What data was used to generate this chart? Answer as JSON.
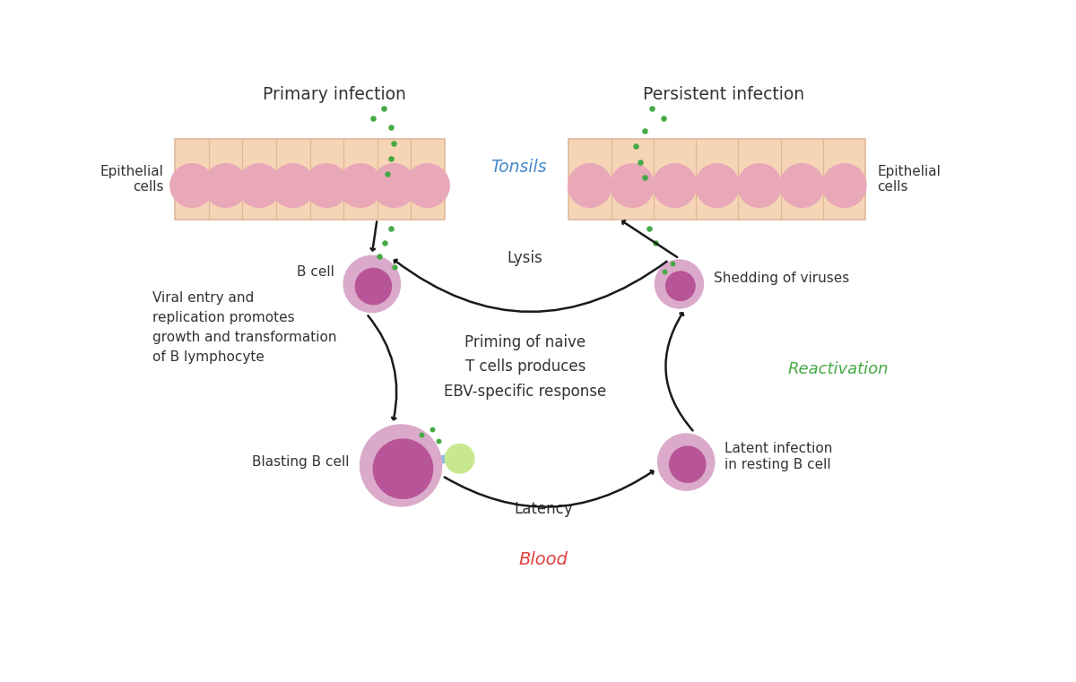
{
  "bg_color": "#ffffff",
  "cell_fill": "#f5d5b5",
  "cell_border": "#e0b898",
  "nucleus_fill": "#e8a8b8",
  "nucleus_border": "#d080a0",
  "bcell_outer": "#dbaacb",
  "bcell_inner": "#b85598",
  "virus_color": "#44aa44",
  "arrow_color": "#1a1a1a",
  "tonsils_color": "#4488cc",
  "blood_color": "#e04040",
  "reactivation_color": "#44aa44",
  "bud_fill": "#c8e890",
  "bud_edge": "#a0c870",
  "tube_color": "#88bbdd",
  "title_primary": "Primary infection",
  "title_persistent": "Persistent infection",
  "label_tonsils": "Tonsils",
  "label_blood": "Blood",
  "label_reactivation": "Reactivation",
  "label_lysis": "Lysis",
  "label_latency": "Latency",
  "label_bcell": "B cell",
  "label_blasting": "Blasting B cell",
  "label_shedding": "Shedding of viruses",
  "label_latent": "Latent infection\nin resting B cell",
  "label_priming": "Priming of naive\nT cells produces\nEBV-specific response",
  "label_viral": "Viral entry and\nreplication promotes\ngrowth and transformation\nof B lymphocyte",
  "label_epithelial": "Epithelial\ncells",
  "figsize": [
    12.0,
    7.61
  ],
  "dpi": 100
}
